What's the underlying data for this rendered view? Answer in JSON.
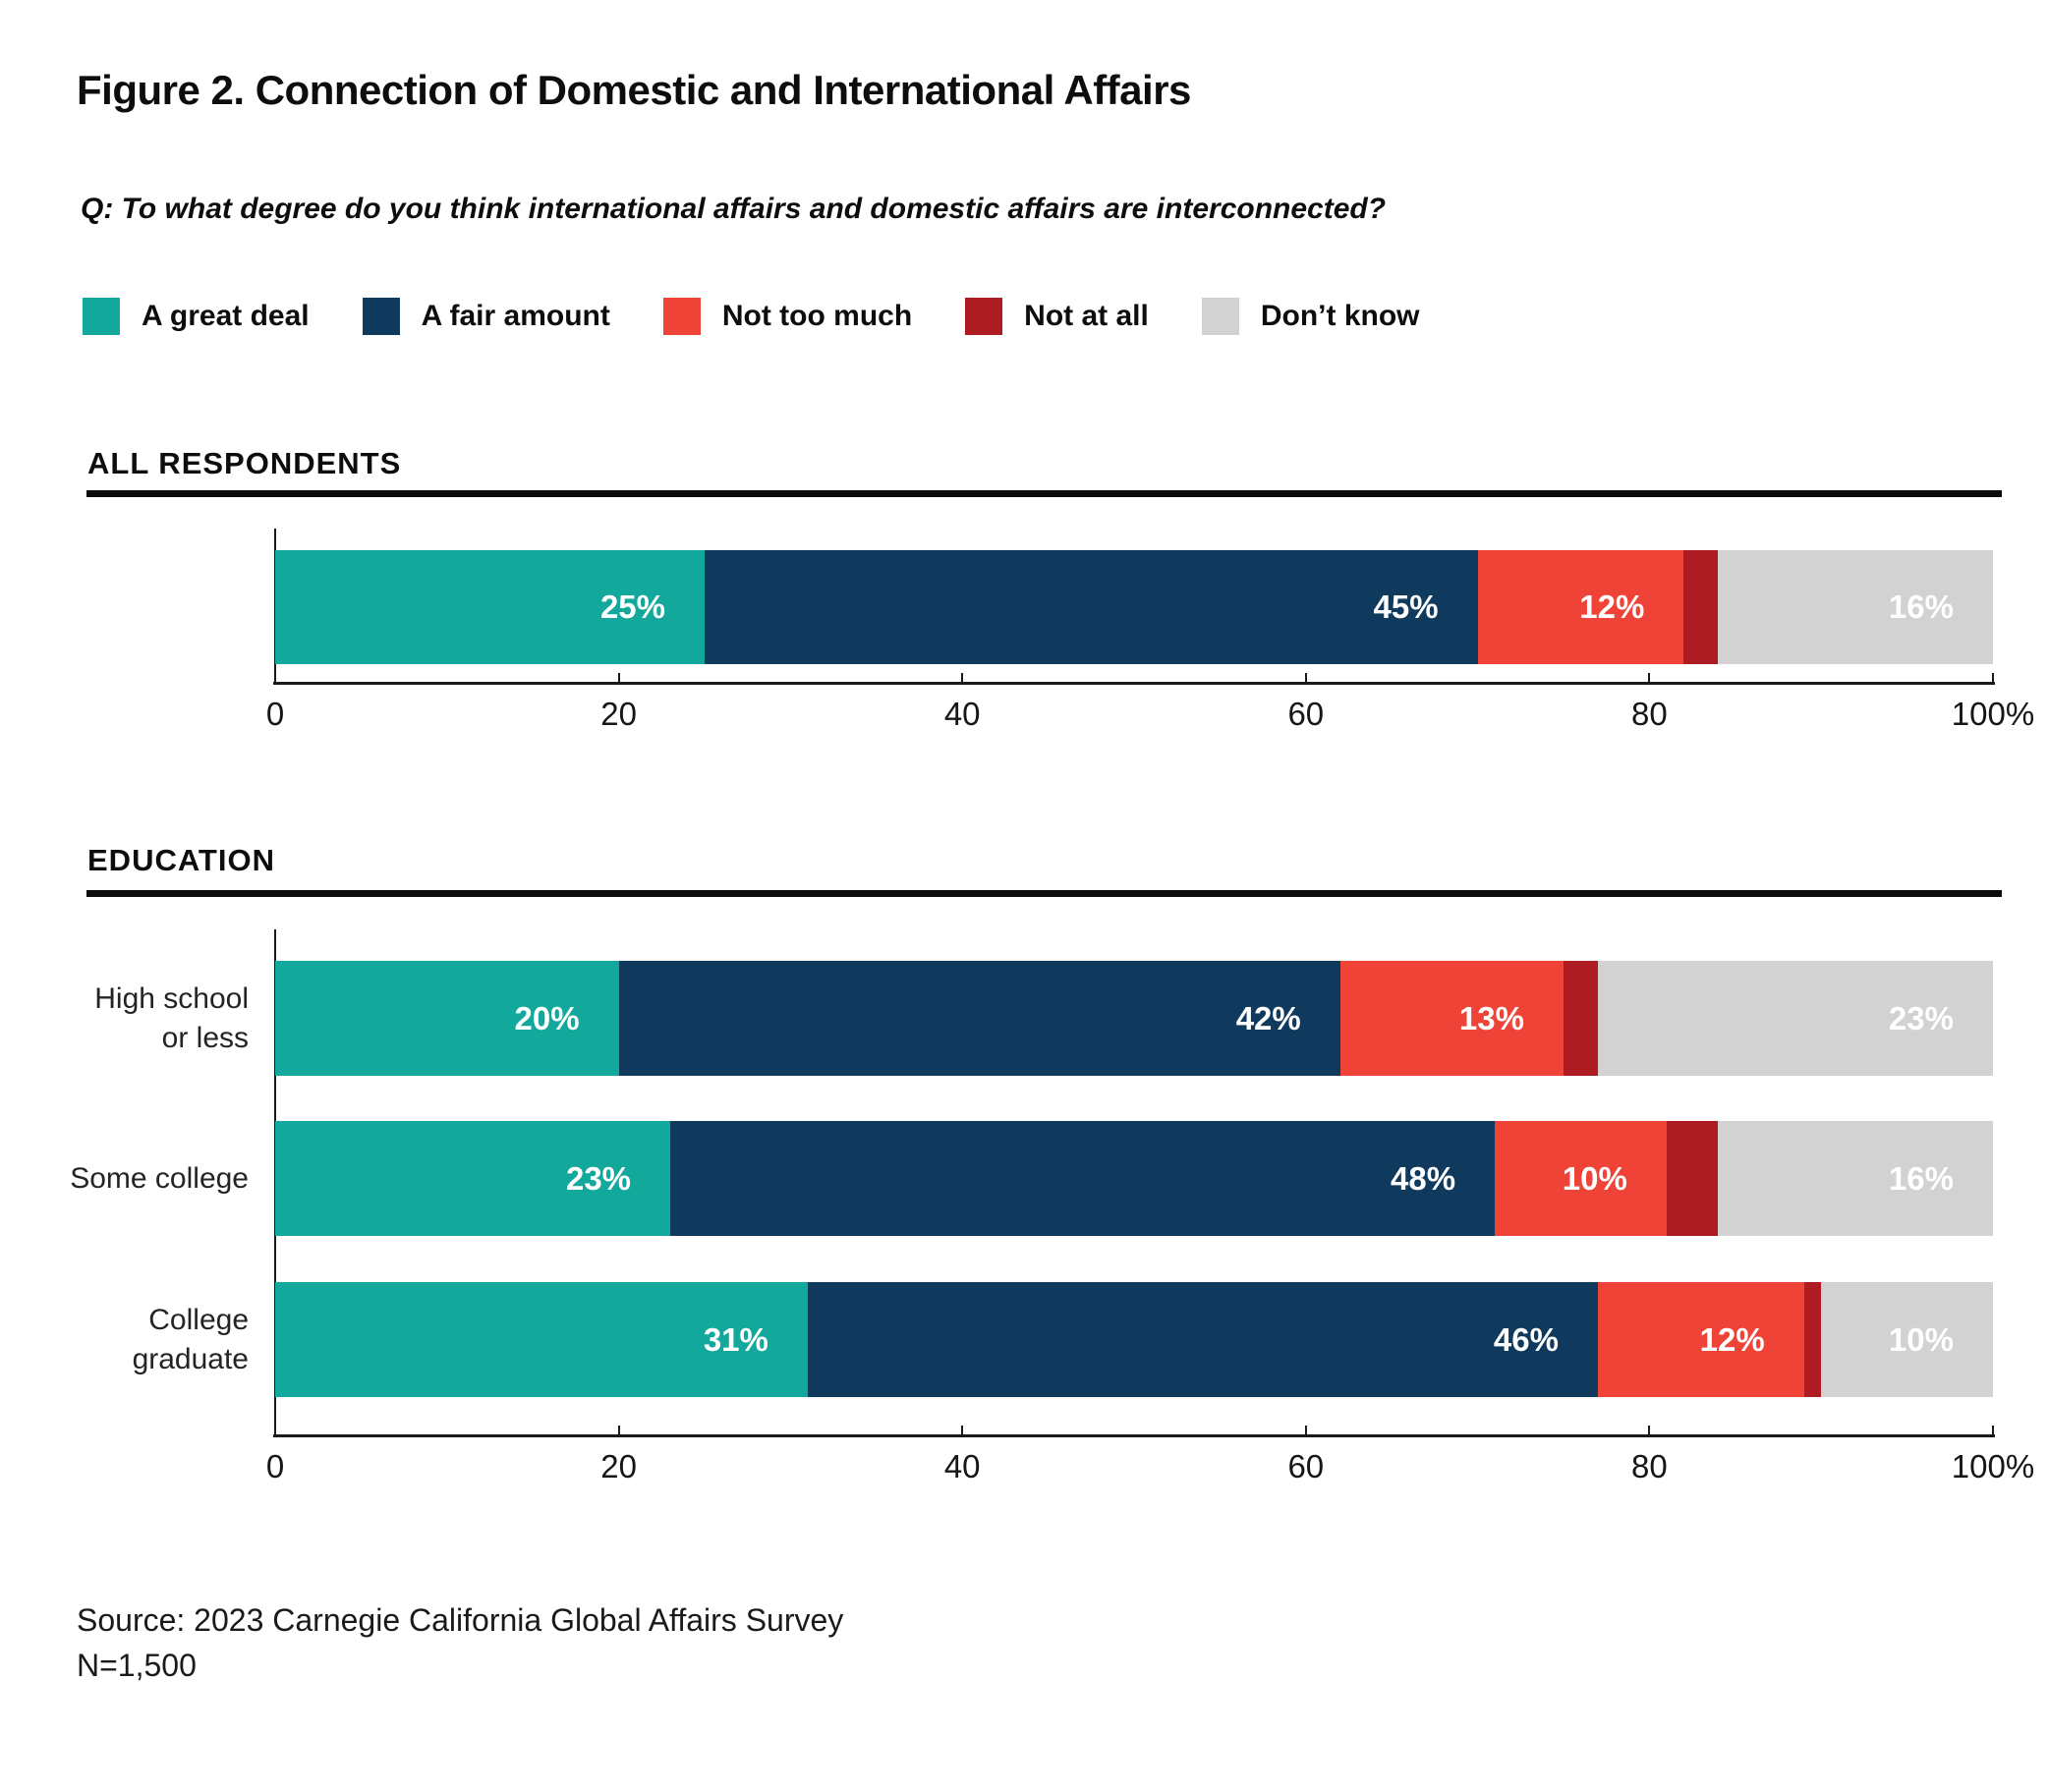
{
  "title": "Figure 2. Connection of Domestic and International Affairs",
  "question": "Q: To what degree do you think international affairs and domestic affairs are interconnected?",
  "colors": {
    "teal": "#12A89C",
    "navy": "#103A5D",
    "red": "#EF4337",
    "dark_red": "#AE1C23",
    "gray": "#D2D2D3"
  },
  "legend": [
    {
      "key": "a-great-deal",
      "label": "A great deal",
      "color": "#12A89C"
    },
    {
      "key": "a-fair-amount",
      "label": "A fair amount",
      "color": "#103A5D"
    },
    {
      "key": "not-too-much",
      "label": "Not too much",
      "color": "#EF4337"
    },
    {
      "key": "not-at-all",
      "label": "Not at all",
      "color": "#AE1C23"
    },
    {
      "key": "dont-know",
      "label": "Don’t know",
      "color": "#D2D2D3"
    }
  ],
  "axis": {
    "ticks": [
      "0",
      "20",
      "40",
      "60",
      "80",
      "100%"
    ],
    "max": 100
  },
  "sections": [
    {
      "heading": "ALL RESPONDENTS",
      "rows": [
        {
          "label_lines": [],
          "values": [
            25,
            45,
            12,
            2,
            16
          ],
          "labels": [
            "25%",
            "45%",
            "12%",
            "",
            "16%"
          ]
        }
      ]
    },
    {
      "heading": "EDUCATION",
      "rows": [
        {
          "label_lines": [
            "High school",
            "or less"
          ],
          "values": [
            20,
            42,
            13,
            2,
            23
          ],
          "labels": [
            "20%",
            "42%",
            "13%",
            "",
            "23%"
          ]
        },
        {
          "label_lines": [
            "Some college"
          ],
          "values": [
            23,
            48,
            10,
            3,
            16
          ],
          "labels": [
            "23%",
            "48%",
            "10%",
            "",
            "16%"
          ]
        },
        {
          "label_lines": [
            "College",
            "graduate"
          ],
          "values": [
            31,
            46,
            12,
            1,
            10
          ],
          "labels": [
            "31%",
            "46%",
            "12%",
            "",
            "10%"
          ]
        }
      ]
    }
  ],
  "source": {
    "line1": "Source: 2023 Carnegie California Global Affairs Survey",
    "line2": "N=1,500"
  },
  "chart_data": {
    "type": "bar",
    "orientation": "horizontal",
    "stacked": true,
    "title": "Figure 2. Connection of Domestic and International Affairs",
    "subtitle": "Q: To what degree do you think international affairs and domestic affairs are interconnected?",
    "categories": [
      "All respondents",
      "High school or less",
      "Some college",
      "College graduate"
    ],
    "series": [
      {
        "name": "A great deal",
        "color": "#12A89C",
        "values": [
          25,
          20,
          23,
          31
        ]
      },
      {
        "name": "A fair amount",
        "color": "#103A5D",
        "values": [
          45,
          42,
          48,
          46
        ]
      },
      {
        "name": "Not too much",
        "color": "#EF4337",
        "values": [
          12,
          13,
          10,
          12
        ]
      },
      {
        "name": "Not at all",
        "color": "#AE1C23",
        "values": [
          2,
          2,
          3,
          1
        ]
      },
      {
        "name": "Don’t know",
        "color": "#D2D2D3",
        "values": [
          16,
          23,
          16,
          10
        ]
      }
    ],
    "groups": [
      {
        "heading": "ALL RESPONDENTS",
        "categories": [
          "All respondents"
        ]
      },
      {
        "heading": "EDUCATION",
        "categories": [
          "High school or less",
          "Some college",
          "College graduate"
        ]
      }
    ],
    "xlim": [
      0,
      100
    ],
    "x_ticks": [
      0,
      20,
      40,
      60,
      80,
      100
    ],
    "x_tick_labels": [
      "0",
      "20",
      "40",
      "60",
      "80",
      "100%"
    ],
    "legend_position": "top",
    "grid": false,
    "source": "Source: 2023 Carnegie California Global Affairs Survey",
    "sample_size": "N=1,500"
  }
}
